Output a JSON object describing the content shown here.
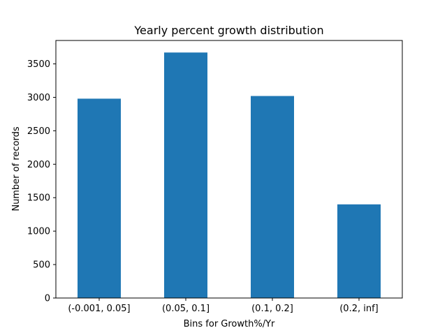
{
  "chart_data": {
    "type": "bar",
    "title": "Yearly percent growth distribution",
    "xlabel": "Bins for Growth%/Yr",
    "ylabel": "Number of records",
    "categories": [
      "(-0.001, 0.05]",
      "(0.05, 0.1]",
      "(0.1, 0.2]",
      "(0.2, inf]"
    ],
    "values": [
      2980,
      3670,
      3020,
      1400
    ],
    "ylim": [
      0,
      3850
    ],
    "yticks": [
      0,
      500,
      1000,
      1500,
      2000,
      2500,
      3000,
      3500
    ],
    "bar_color": "#1f77b4",
    "grid": false,
    "legend": "none"
  }
}
